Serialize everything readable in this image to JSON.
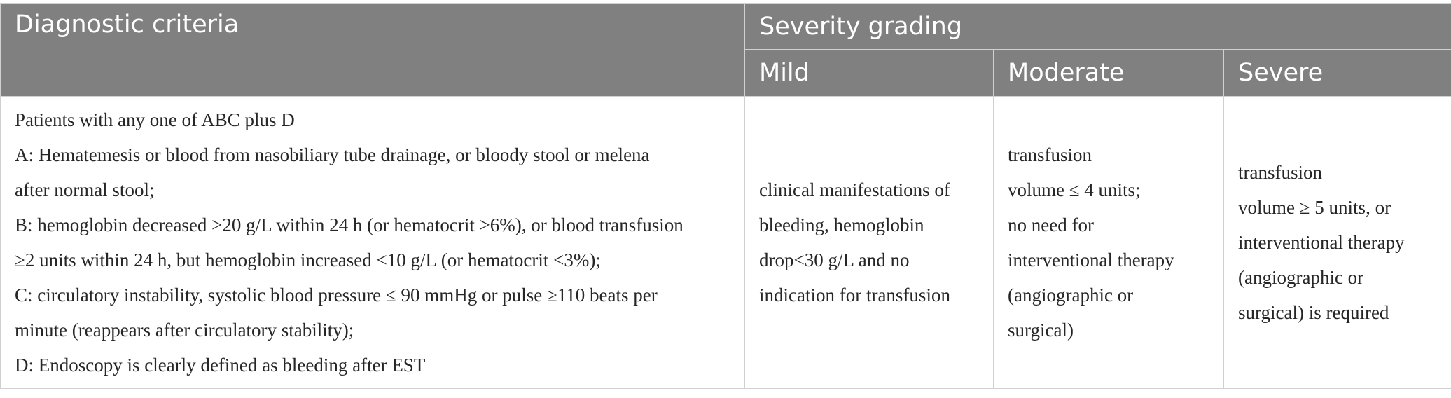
{
  "table": {
    "headers": {
      "diagnostic": "Diagnostic criteria",
      "severity": "Severity grading",
      "mild": "Mild",
      "moderate": "Moderate",
      "severe": "Severe"
    },
    "criteria_lines": [
      "Patients with any one of ABC plus D",
      "A: Hematemesis or blood from nasobiliary tube drainage, or bloody stool or melena",
      "after normal stool;",
      "B: hemoglobin decreased >20 g/L within 24 h (or hematocrit >6%), or blood transfusion",
      "≥2 units within 24 h, but hemoglobin increased <10 g/L (or hematocrit <3%);",
      "C: circulatory instability, systolic blood pressure ≤ 90 mmHg or pulse ≥110 beats per",
      "minute (reappears after circulatory stability);",
      "D: Endoscopy is clearly defined as bleeding after EST"
    ],
    "mild_lines": [
      "clinical manifestations of",
      "bleeding, hemoglobin",
      "drop<30 g/L and no",
      "indication for transfusion"
    ],
    "moderate_lines": [
      "transfusion",
      "volume ≤ 4 units;",
      "no need for",
      "interventional therapy",
      "(angiographic or",
      "surgical)"
    ],
    "severe_lines": [
      "transfusion",
      "volume ≥ 5 units, or",
      "interventional therapy",
      "(angiographic or",
      "surgical) is required"
    ]
  }
}
